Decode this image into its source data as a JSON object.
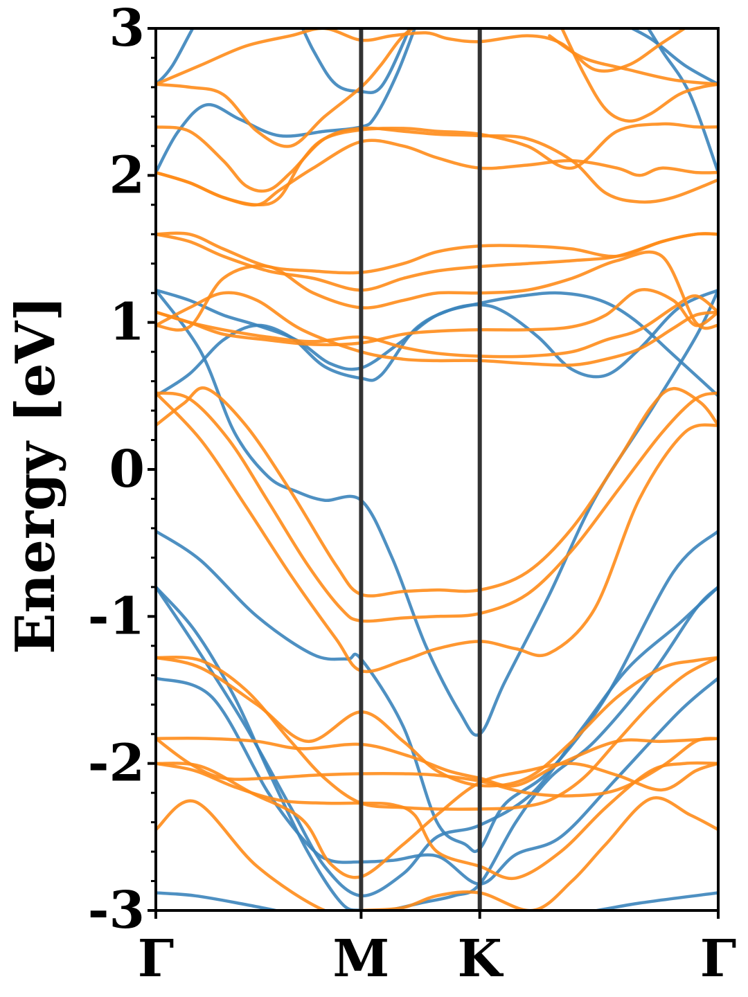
{
  "chart_data": {
    "type": "line",
    "title": "",
    "xlabel": "",
    "ylabel": "Energy [eV]",
    "ylim": [
      -3,
      3
    ],
    "yticks": [
      "3",
      "2",
      "1",
      "0",
      "-1",
      "-2",
      "-3"
    ],
    "ytick_values": [
      3,
      2,
      1,
      0,
      -1,
      -2,
      -3
    ],
    "xlim": [
      0,
      1
    ],
    "kpath": [
      {
        "label": "Γ",
        "x": 0.0
      },
      {
        "label": "M",
        "x": 0.365
      },
      {
        "label": "K",
        "x": 0.576
      },
      {
        "label": "Γ",
        "x": 1.0
      }
    ],
    "grid": false,
    "legend": "none",
    "colors": {
      "blue": "#3b84bb",
      "orange": "#ff8c1a",
      "kline": "#333333"
    },
    "series": [
      {
        "color": "blue",
        "x": [
          0,
          0.07,
          0.16,
          0.28,
          0.365,
          0.48,
          0.576,
          0.7,
          0.86,
          1.0
        ],
        "y": [
          -2.88,
          -2.9,
          -2.96,
          -3.05,
          -3.1,
          -3.1,
          -3.05,
          -3.05,
          -2.95,
          -2.88
        ]
      },
      {
        "color": "blue",
        "x": [
          0,
          0.1,
          0.2,
          0.27,
          0.31,
          0.365,
          0.42,
          0.5,
          0.576,
          0.64,
          0.72,
          0.82,
          0.93,
          1.0
        ],
        "y": [
          -1.42,
          -1.55,
          -2.2,
          -2.55,
          -2.66,
          -2.67,
          -2.66,
          -2.63,
          -2.82,
          -2.62,
          -2.5,
          -2.1,
          -1.65,
          -1.42
        ]
      },
      {
        "color": "blue",
        "x": [
          0,
          0.07,
          0.16,
          0.24,
          0.3,
          0.365,
          0.44,
          0.5,
          0.576,
          0.67,
          0.76,
          0.84,
          0.93,
          1.0
        ],
        "y": [
          -0.8,
          -1.2,
          -1.75,
          -2.3,
          -2.7,
          -2.9,
          -2.75,
          -2.5,
          -2.42,
          -2.2,
          -1.75,
          -1.35,
          -1.05,
          -0.8
        ]
      },
      {
        "color": "blue",
        "x": [
          0,
          0.07,
          0.14,
          0.2,
          0.27,
          0.33,
          0.365,
          0.41,
          0.47,
          0.53,
          0.576,
          0.64,
          0.7,
          0.78,
          0.88,
          0.96,
          1.0
        ],
        "y": [
          -0.8,
          -1.1,
          -1.55,
          -2.05,
          -2.6,
          -2.95,
          -3.0,
          -3.0,
          -2.95,
          -2.9,
          -2.82,
          -2.4,
          -2.1,
          -1.85,
          -1.4,
          -0.95,
          -0.8
        ]
      },
      {
        "color": "blue",
        "x": [
          0,
          0.08,
          0.18,
          0.28,
          0.34,
          0.365,
          0.44,
          0.5,
          0.55,
          0.576,
          0.62,
          0.7,
          0.8,
          0.92,
          1.0
        ],
        "y": [
          -0.42,
          -0.62,
          -1.0,
          -1.26,
          -1.29,
          -1.29,
          -1.75,
          -2.4,
          -2.55,
          -2.58,
          -2.28,
          -2.05,
          -1.55,
          -0.7,
          -0.42
        ]
      },
      {
        "color": "blue",
        "x": [
          0,
          0.08,
          0.14,
          0.2,
          0.25,
          0.3,
          0.365,
          0.42,
          0.48,
          0.54,
          0.576,
          0.62,
          0.7,
          0.78,
          0.88,
          0.96,
          1.0
        ],
        "y": [
          1.22,
          0.8,
          0.25,
          -0.05,
          -0.15,
          -0.21,
          -0.21,
          -0.6,
          -1.2,
          -1.65,
          -1.8,
          -1.45,
          -0.85,
          -0.2,
          0.4,
          0.9,
          1.22
        ]
      },
      {
        "color": "blue",
        "x": [
          0,
          0.06,
          0.12,
          0.18,
          0.25,
          0.31,
          0.365,
          0.43,
          0.5,
          0.576,
          0.65,
          0.72,
          0.79,
          0.85,
          0.92,
          1.0
        ],
        "y": [
          1.22,
          1.15,
          1.05,
          0.98,
          0.88,
          0.72,
          0.69,
          0.85,
          1.05,
          1.13,
          1.18,
          1.2,
          1.15,
          1.02,
          0.78,
          0.5
        ]
      },
      {
        "color": "blue",
        "x": [
          0,
          0.06,
          0.12,
          0.18,
          0.24,
          0.3,
          0.365,
          0.4,
          0.46,
          0.52,
          0.576,
          0.62,
          0.68,
          0.74,
          0.8,
          0.86,
          0.93,
          1.0
        ],
        "y": [
          0.5,
          0.65,
          0.88,
          0.98,
          0.9,
          0.7,
          0.62,
          0.64,
          0.95,
          1.08,
          1.12,
          1.07,
          0.9,
          0.68,
          0.64,
          0.82,
          1.1,
          1.22
        ]
      },
      {
        "color": "blue",
        "x": [
          0,
          0.03,
          0.09,
          0.16,
          0.22,
          0.28,
          0.32,
          0.365,
          0.4,
          0.44,
          0.47
        ],
        "y": [
          2.62,
          2.75,
          3.15,
          3.4,
          3.3,
          2.85,
          2.62,
          2.57,
          2.6,
          2.9,
          3.2
        ]
      },
      {
        "color": "blue",
        "x": [
          0,
          0.04,
          0.09,
          0.15,
          0.22,
          0.3,
          0.365,
          0.39,
          0.43,
          0.47
        ],
        "y": [
          2.02,
          2.3,
          2.48,
          2.38,
          2.27,
          2.3,
          2.33,
          2.4,
          2.7,
          3.1
        ]
      },
      {
        "color": "blue",
        "x": [
          0.86,
          0.9,
          0.95,
          1.0
        ],
        "y": [
          3.1,
          2.85,
          2.55,
          2.02
        ]
      },
      {
        "color": "blue",
        "x": [
          0.82,
          0.88,
          0.94,
          1.0
        ],
        "y": [
          3.05,
          2.93,
          2.75,
          2.62
        ]
      },
      {
        "color": "orange",
        "x": [
          0,
          0.07,
          0.18,
          0.3,
          0.365,
          0.44,
          0.5,
          0.576,
          0.67,
          0.74,
          0.8,
          0.88,
          0.95,
          1.0
        ],
        "y": [
          -2.45,
          -2.26,
          -2.7,
          -3.0,
          -3.0,
          -2.98,
          -2.9,
          -2.88,
          -3.0,
          -2.8,
          -2.55,
          -2.24,
          -2.35,
          -2.45
        ]
      },
      {
        "color": "orange",
        "x": [
          0,
          0.07,
          0.14,
          0.22,
          0.3,
          0.365,
          0.42,
          0.46,
          0.5,
          0.576,
          0.64,
          0.72,
          0.8,
          0.88,
          0.94,
          1.0
        ],
        "y": [
          -2.0,
          -2.05,
          -2.16,
          -2.25,
          -2.27,
          -2.27,
          -2.28,
          -2.35,
          -2.6,
          -2.7,
          -2.78,
          -2.6,
          -2.3,
          -2.05,
          -2.0,
          -2.0
        ]
      },
      {
        "color": "orange",
        "x": [
          0,
          0.08,
          0.17,
          0.26,
          0.31,
          0.365,
          0.44,
          0.5,
          0.576,
          0.66,
          0.74,
          0.82,
          0.9,
          0.96,
          1.0
        ],
        "y": [
          -2.0,
          -2.02,
          -2.2,
          -2.38,
          -2.68,
          -2.77,
          -2.55,
          -2.35,
          -2.13,
          -2.05,
          -2.0,
          -2.08,
          -2.18,
          -2.05,
          -2.0
        ]
      },
      {
        "color": "orange",
        "x": [
          0,
          0.09,
          0.18,
          0.26,
          0.365,
          0.45,
          0.52,
          0.576,
          0.64,
          0.72,
          0.82,
          0.9,
          1.0
        ],
        "y": [
          -1.83,
          -1.83,
          -1.85,
          -1.9,
          -1.87,
          -1.95,
          -2.05,
          -2.1,
          -2.15,
          -2.0,
          -1.85,
          -1.85,
          -1.83
        ]
      },
      {
        "color": "orange",
        "x": [
          0,
          0.06,
          0.12,
          0.2,
          0.28,
          0.365,
          0.44,
          0.5,
          0.576,
          0.66,
          0.74,
          0.82,
          0.9,
          0.96,
          1.0
        ],
        "y": [
          -1.83,
          -2.0,
          -2.1,
          -2.1,
          -2.08,
          -2.07,
          -2.07,
          -2.08,
          -2.12,
          -2.2,
          -2.22,
          -2.18,
          -2.02,
          -1.85,
          -1.83
        ]
      },
      {
        "color": "orange",
        "x": [
          0,
          0.08,
          0.18,
          0.27,
          0.365,
          0.44,
          0.5,
          0.576,
          0.66,
          0.74,
          0.82,
          0.9,
          0.96,
          1.0
        ],
        "y": [
          -1.28,
          -1.35,
          -1.6,
          -1.85,
          -1.65,
          -1.85,
          -2.05,
          -2.15,
          -2.1,
          -1.85,
          -1.55,
          -1.35,
          -1.3,
          -1.28
        ]
      },
      {
        "color": "orange",
        "x": [
          0,
          0.08,
          0.16,
          0.24,
          0.3,
          0.365,
          0.44,
          0.5,
          0.576,
          0.64,
          0.7,
          0.76,
          0.82,
          0.88,
          0.94,
          1.0
        ],
        "y": [
          -1.28,
          -1.3,
          -1.5,
          -1.85,
          -2.1,
          -2.27,
          -2.3,
          -2.31,
          -2.31,
          -2.3,
          -2.25,
          -2.1,
          -1.85,
          -1.6,
          -1.4,
          -1.28
        ]
      },
      {
        "color": "orange",
        "x": [
          0,
          0.08,
          0.16,
          0.24,
          0.32,
          0.365,
          0.44,
          0.5,
          0.576,
          0.64,
          0.7,
          0.78,
          0.86,
          0.94,
          1.0
        ],
        "y": [
          0.52,
          0.2,
          -0.25,
          -0.72,
          -1.15,
          -1.37,
          -1.3,
          -1.22,
          -1.17,
          -1.22,
          -1.25,
          -0.95,
          -0.2,
          0.25,
          0.3
        ]
      },
      {
        "color": "orange",
        "x": [
          0,
          0.06,
          0.13,
          0.2,
          0.27,
          0.33,
          0.365,
          0.44,
          0.5,
          0.576,
          0.66,
          0.74,
          0.82,
          0.9,
          0.96,
          1.0
        ],
        "y": [
          0.52,
          0.48,
          0.2,
          -0.22,
          -0.65,
          -0.95,
          -1.03,
          -1.01,
          -1.0,
          -0.98,
          -0.85,
          -0.55,
          -0.15,
          0.25,
          0.48,
          0.52
        ]
      },
      {
        "color": "orange",
        "x": [
          0,
          0.05,
          0.09,
          0.16,
          0.24,
          0.32,
          0.365,
          0.44,
          0.5,
          0.576,
          0.66,
          0.74,
          0.82,
          0.88,
          0.92,
          0.97,
          1.0
        ],
        "y": [
          0.3,
          0.45,
          0.55,
          0.3,
          -0.15,
          -0.65,
          -0.85,
          -0.83,
          -0.82,
          -0.82,
          -0.7,
          -0.4,
          0.05,
          0.42,
          0.55,
          0.45,
          0.3
        ]
      },
      {
        "color": "orange",
        "x": [
          0,
          0.06,
          0.12,
          0.18,
          0.26,
          0.365,
          0.44,
          0.5,
          0.576,
          0.66,
          0.74,
          0.8,
          0.86,
          0.92,
          0.96,
          1.0
        ],
        "y": [
          0.98,
          1.1,
          1.2,
          1.15,
          0.95,
          0.8,
          0.75,
          0.74,
          0.74,
          0.72,
          0.71,
          0.75,
          0.82,
          0.96,
          1.05,
          1.07
        ]
      },
      {
        "color": "orange",
        "x": [
          0,
          0.06,
          0.12,
          0.2,
          0.28,
          0.365,
          0.44,
          0.5,
          0.576,
          0.66,
          0.74,
          0.8,
          0.86,
          0.92,
          0.96,
          1.0
        ],
        "y": [
          1.07,
          1.0,
          0.92,
          0.88,
          0.85,
          0.86,
          0.92,
          0.94,
          0.95,
          0.95,
          0.97,
          1.05,
          1.22,
          1.15,
          0.98,
          1.07
        ]
      },
      {
        "color": "orange",
        "x": [
          0,
          0.06,
          0.12,
          0.2,
          0.28,
          0.365,
          0.44,
          0.5,
          0.576,
          0.66,
          0.74,
          0.8,
          0.86,
          0.92,
          0.96,
          1.0
        ],
        "y": [
          1.07,
          1.0,
          0.95,
          0.9,
          0.87,
          0.9,
          0.83,
          0.79,
          0.77,
          0.77,
          0.8,
          0.88,
          0.95,
          1.1,
          1.18,
          1.07
        ]
      },
      {
        "color": "orange",
        "x": [
          0,
          0.06,
          0.12,
          0.2,
          0.28,
          0.365,
          0.44,
          0.5,
          0.576,
          0.66,
          0.74,
          0.82,
          0.9,
          0.96,
          1.0
        ],
        "y": [
          0.98,
          0.97,
          1.3,
          1.38,
          1.2,
          1.1,
          1.15,
          1.2,
          1.2,
          1.22,
          1.3,
          1.42,
          1.45,
          1.0,
          0.98
        ]
      },
      {
        "color": "orange",
        "x": [
          0,
          0.06,
          0.12,
          0.2,
          0.28,
          0.365,
          0.44,
          0.5,
          0.576,
          0.66,
          0.74,
          0.82,
          0.9,
          0.96,
          1.0
        ],
        "y": [
          1.6,
          1.55,
          1.45,
          1.35,
          1.3,
          1.22,
          1.3,
          1.35,
          1.38,
          1.4,
          1.42,
          1.45,
          1.55,
          1.6,
          1.6
        ]
      },
      {
        "color": "orange",
        "x": [
          0,
          0.06,
          0.12,
          0.2,
          0.28,
          0.365,
          0.44,
          0.5,
          0.576,
          0.66,
          0.74,
          0.82,
          0.9,
          0.96,
          1.0
        ],
        "y": [
          1.6,
          1.6,
          1.5,
          1.38,
          1.35,
          1.34,
          1.4,
          1.48,
          1.52,
          1.52,
          1.5,
          1.45,
          1.55,
          1.6,
          1.6
        ]
      },
      {
        "color": "orange",
        "x": [
          0,
          0.06,
          0.12,
          0.18,
          0.22,
          0.28,
          0.365,
          0.44,
          0.5,
          0.576,
          0.66,
          0.74,
          0.82,
          0.86,
          0.9,
          0.96,
          1.0
        ],
        "y": [
          2.02,
          1.95,
          1.85,
          1.8,
          1.9,
          2.05,
          2.23,
          2.2,
          2.12,
          2.05,
          2.07,
          2.1,
          2.05,
          2.0,
          2.05,
          2.02,
          2.02
        ]
      },
      {
        "color": "orange",
        "x": [
          0,
          0.06,
          0.12,
          0.16,
          0.2,
          0.24,
          0.3,
          0.365,
          0.44,
          0.5,
          0.576,
          0.66,
          0.74,
          0.8,
          0.86,
          0.92,
          1.0
        ],
        "y": [
          2.33,
          2.3,
          2.1,
          1.93,
          1.9,
          2.02,
          2.25,
          2.32,
          2.3,
          2.28,
          2.27,
          2.25,
          2.1,
          1.88,
          1.82,
          1.85,
          1.97
        ]
      },
      {
        "color": "orange",
        "x": [
          0,
          0.06,
          0.12,
          0.18,
          0.22,
          0.26,
          0.3,
          0.365,
          0.44,
          0.5,
          0.576,
          0.66,
          0.74,
          0.82,
          0.9,
          0.96,
          1.0
        ],
        "y": [
          2.02,
          1.95,
          1.85,
          1.8,
          1.85,
          2.1,
          2.25,
          2.31,
          2.32,
          2.3,
          2.28,
          2.2,
          2.05,
          2.3,
          2.35,
          2.33,
          2.33
        ]
      },
      {
        "color": "orange",
        "x": [
          0,
          0.06,
          0.12,
          0.18,
          0.24,
          0.3,
          0.365,
          0.4,
          0.44,
          0.48,
          0.5
        ],
        "y": [
          2.62,
          2.6,
          2.55,
          2.3,
          2.2,
          2.4,
          2.6,
          2.75,
          2.95,
          3.05,
          3.1
        ]
      },
      {
        "color": "orange",
        "x": [
          0,
          0.08,
          0.16,
          0.24,
          0.3,
          0.365,
          0.42,
          0.48,
          0.52,
          0.576,
          0.66,
          0.72,
          0.78,
          0.84,
          0.9,
          0.96,
          1.0
        ],
        "y": [
          2.62,
          2.75,
          2.88,
          2.95,
          3.0,
          2.92,
          2.95,
          2.97,
          2.93,
          2.91,
          2.95,
          2.9,
          2.72,
          2.75,
          2.9,
          3.05,
          3.15
        ]
      },
      {
        "color": "orange",
        "x": [
          0.71,
          0.76,
          0.8,
          0.84,
          0.88,
          0.93,
          0.97,
          1.0
        ],
        "y": [
          3.1,
          2.7,
          2.45,
          2.37,
          2.42,
          2.55,
          2.6,
          2.62
        ]
      },
      {
        "color": "orange",
        "x": [
          0.7,
          0.76,
          0.84,
          0.92,
          1.0
        ],
        "y": [
          2.95,
          2.8,
          2.72,
          2.65,
          2.62
        ]
      }
    ]
  }
}
